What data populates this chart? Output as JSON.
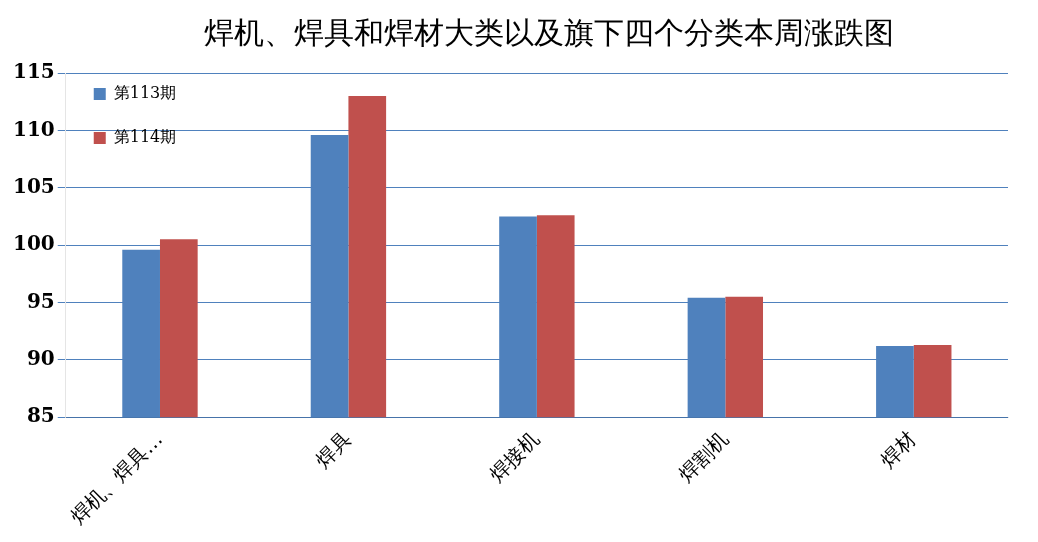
{
  "chart_data": {
    "type": "bar",
    "title": "焊机、焊具和焊材大类以及旗下四个分类本周涨跌图",
    "categories": [
      "焊机、焊具…",
      "焊具",
      "焊接机",
      "焊割机",
      "焊材"
    ],
    "series": [
      {
        "name": "第113期",
        "color": "#4f81bd",
        "values": [
          99.6,
          109.6,
          102.5,
          95.4,
          91.2
        ]
      },
      {
        "name": "第114期",
        "color": "#c0504d",
        "values": [
          100.5,
          113.0,
          102.6,
          95.5,
          91.3
        ]
      }
    ],
    "ylim": [
      85,
      115
    ],
    "yticks": [
      85,
      90,
      95,
      100,
      105,
      110,
      115
    ],
    "grid": "y",
    "legend": "top left"
  }
}
